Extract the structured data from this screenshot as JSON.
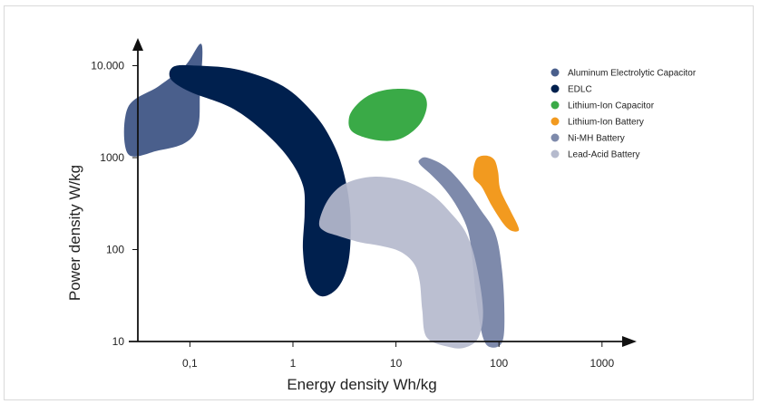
{
  "chart_data": {
    "type": "area",
    "xlabel": "Energy density Wh/kg",
    "ylabel": "Power density W/kg",
    "x_scale": "log",
    "y_scale": "log",
    "xlim": [
      0.025,
      1500
    ],
    "ylim": [
      10,
      30000
    ],
    "x_ticks": [
      {
        "value": 0.1,
        "label": "0,1"
      },
      {
        "value": 1,
        "label": "1"
      },
      {
        "value": 10,
        "label": "10"
      },
      {
        "value": 100,
        "label": "100"
      },
      {
        "value": 1000,
        "label": "1000"
      }
    ],
    "y_ticks": [
      {
        "value": 10,
        "label": "10"
      },
      {
        "value": 100,
        "label": "100"
      },
      {
        "value": 1000,
        "label": "1000"
      },
      {
        "value": 10000,
        "label": "10.000"
      }
    ],
    "grid": false,
    "legend_position": "top-right",
    "series": [
      {
        "name": "Aluminum Electrolytic Capacitor",
        "color": "#4a5f8c",
        "energy_range_wh_kg": [
          0.025,
          0.14
        ],
        "power_range_w_kg": [
          1100,
          17000
        ],
        "outline": [
          [
            0.025,
            3500
          ],
          [
            0.05,
            6000
          ],
          [
            0.09,
            10000
          ],
          [
            0.13,
            17000
          ],
          [
            0.125,
            5000
          ],
          [
            0.12,
            2200
          ],
          [
            0.09,
            1450
          ],
          [
            0.05,
            1200
          ],
          [
            0.025,
            1100
          ]
        ]
      },
      {
        "name": "EDLC",
        "color": "#00204e",
        "energy_range_wh_kg": [
          0.06,
          3.5
        ],
        "power_range_w_kg": [
          30,
          10000
        ],
        "outline": [
          [
            0.07,
            9800
          ],
          [
            0.12,
            10000
          ],
          [
            0.3,
            9000
          ],
          [
            0.8,
            6000
          ],
          [
            1.6,
            3000
          ],
          [
            2.4,
            1500
          ],
          [
            3.1,
            700
          ],
          [
            3.6,
            250
          ],
          [
            3.5,
            80
          ],
          [
            2.8,
            40
          ],
          [
            1.9,
            31
          ],
          [
            1.4,
            45
          ],
          [
            1.25,
            100
          ],
          [
            1.3,
            250
          ],
          [
            1.25,
            500
          ],
          [
            0.9,
            1000
          ],
          [
            0.5,
            2000
          ],
          [
            0.25,
            3500
          ],
          [
            0.1,
            5200
          ],
          [
            0.065,
            7200
          ]
        ]
      },
      {
        "name": "Lithium-Ion Capacitor",
        "color": "#3aaa47",
        "energy_range_wh_kg": [
          3.5,
          20
        ],
        "power_range_w_kg": [
          1600,
          5500
        ],
        "outline": [
          [
            3.5,
            2700
          ],
          [
            4.2,
            3800
          ],
          [
            6,
            5000
          ],
          [
            10,
            5600
          ],
          [
            17,
            5200
          ],
          [
            20,
            3800
          ],
          [
            17,
            2300
          ],
          [
            11,
            1600
          ],
          [
            6.5,
            1550
          ],
          [
            3.8,
            1900
          ]
        ]
      },
      {
        "name": "Lithium-Ion Battery",
        "color": "#f29a1f",
        "energy_range_wh_kg": [
          55,
          155
        ],
        "power_range_w_kg": [
          160,
          1050
        ],
        "outline": [
          [
            57,
            800
          ],
          [
            62,
            1000
          ],
          [
            75,
            1050
          ],
          [
            90,
            950
          ],
          [
            98,
            700
          ],
          [
            103,
            450
          ],
          [
            128,
            270
          ],
          [
            150,
            190
          ],
          [
            155,
            160
          ],
          [
            132,
            160
          ],
          [
            111,
            190
          ],
          [
            85,
            300
          ],
          [
            68,
            480
          ],
          [
            57,
            600
          ]
        ]
      },
      {
        "name": "Ni-MH Battery",
        "color": "#7e8aab",
        "energy_range_wh_kg": [
          17,
          115
        ],
        "power_range_w_kg": [
          8.5,
          1000
        ],
        "outline": [
          [
            17,
            950
          ],
          [
            20,
            1000
          ],
          [
            30,
            800
          ],
          [
            45,
            500
          ],
          [
            65,
            280
          ],
          [
            92,
            150
          ],
          [
            107,
            60
          ],
          [
            113,
            20
          ],
          [
            108,
            10
          ],
          [
            85,
            8.6
          ],
          [
            70,
            11
          ],
          [
            60,
            30
          ],
          [
            55,
            80
          ],
          [
            50,
            160
          ],
          [
            40,
            280
          ],
          [
            30,
            450
          ],
          [
            22,
            650
          ],
          [
            17,
            850
          ]
        ]
      },
      {
        "name": "Lead-Acid Battery",
        "color": "#b5bacd",
        "energy_range_wh_kg": [
          1.7,
          70
        ],
        "power_range_w_kg": [
          8.5,
          650
        ],
        "outline": [
          [
            1.8,
            200
          ],
          [
            2.2,
            350
          ],
          [
            3.2,
            520
          ],
          [
            6,
            620
          ],
          [
            12,
            560
          ],
          [
            22,
            400
          ],
          [
            34,
            250
          ],
          [
            48,
            150
          ],
          [
            60,
            70
          ],
          [
            70,
            22
          ],
          [
            63,
            11
          ],
          [
            47,
            8.6
          ],
          [
            33,
            8.7
          ],
          [
            20,
            11
          ],
          [
            18,
            22
          ],
          [
            17,
            45
          ],
          [
            15,
            70
          ],
          [
            11,
            95
          ],
          [
            7,
            110
          ],
          [
            4.5,
            120
          ],
          [
            2.8,
            140
          ],
          [
            2,
            160
          ]
        ]
      }
    ]
  }
}
